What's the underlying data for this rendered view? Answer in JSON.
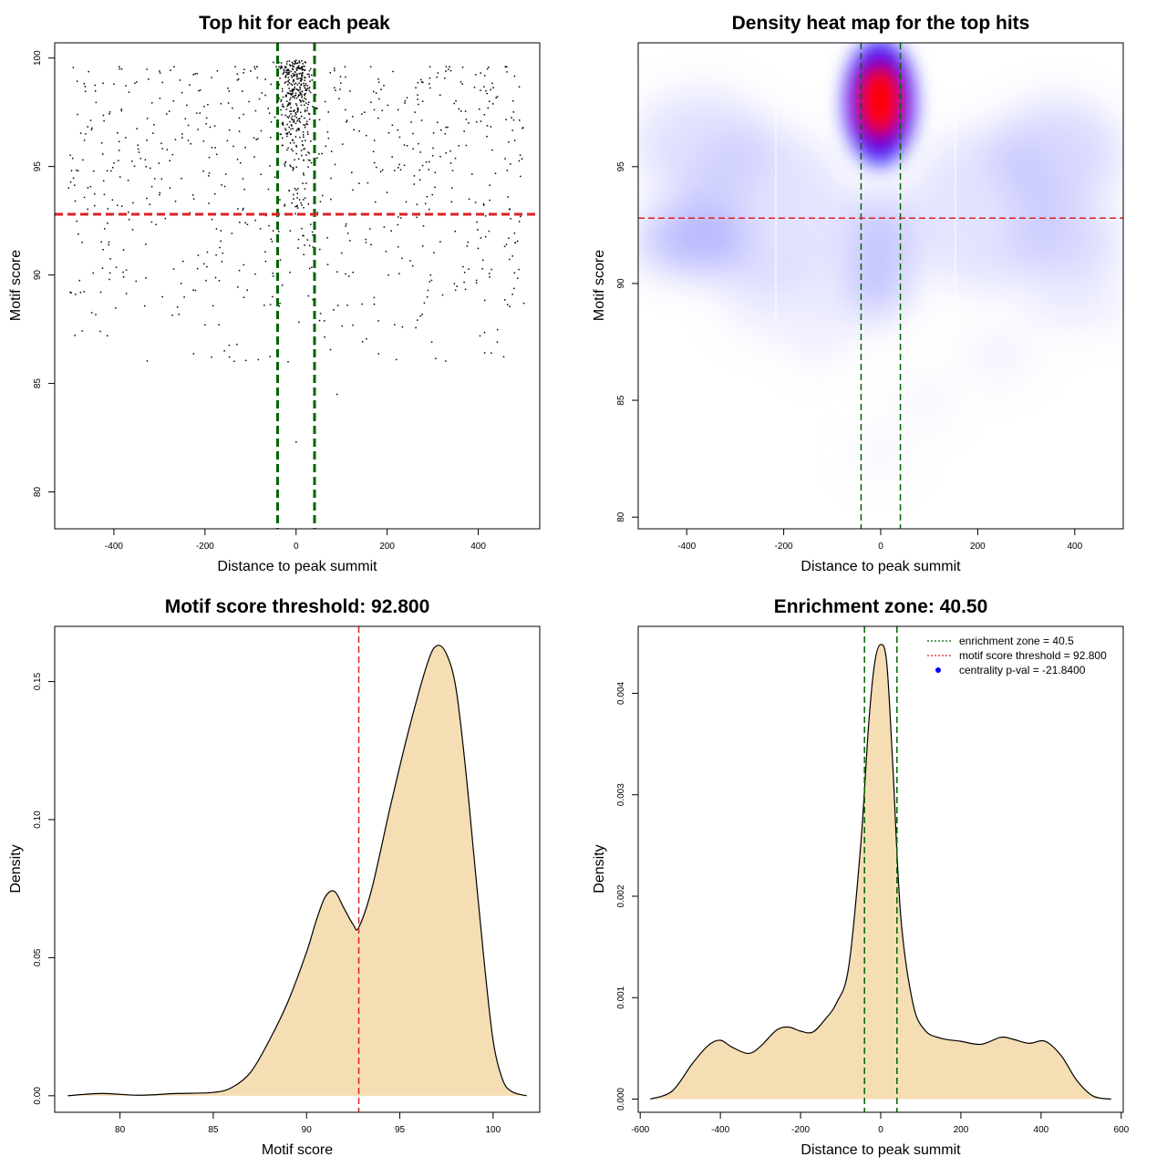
{
  "chart_data": [
    {
      "type": "scatter",
      "title": "Top hit for each peak",
      "xlabel": "Distance to peak summit",
      "ylabel": "Motif score",
      "xlim": [
        -530,
        535
      ],
      "ylim": [
        78.3,
        100.7
      ],
      "xticks": [
        -400,
        -200,
        0,
        200,
        400
      ],
      "yticks": [
        80,
        85,
        90,
        95,
        100
      ],
      "vlines": [
        -40.5,
        40.5
      ],
      "hline": 92.8,
      "colors": {
        "points": "#000000",
        "vline": "#006400",
        "hline": "#dd2222"
      },
      "point_note": "approx. 1100 top hits; dense cluster near distance 0 above score 95",
      "points_sample": [
        [
          -480,
          97.4
        ],
        [
          -470,
          91.5
        ],
        [
          -430,
          87.4
        ],
        [
          -400,
          98.8
        ],
        [
          -350,
          98.9
        ],
        [
          -300,
          99.4
        ],
        [
          -250,
          96.5
        ],
        [
          -200,
          87.7
        ],
        [
          -130,
          86.8
        ],
        [
          -100,
          99.4
        ],
        [
          -50,
          99.8
        ],
        [
          0,
          99.9
        ],
        [
          10,
          97.5
        ],
        [
          20,
          96.2
        ],
        [
          -10,
          95.8
        ],
        [
          30,
          90.3
        ],
        [
          0,
          82.3
        ],
        [
          90,
          84.5
        ],
        [
          150,
          97.5
        ],
        [
          220,
          86.1
        ],
        [
          300,
          95.5
        ],
        [
          350,
          89.3
        ],
        [
          420,
          99.5
        ],
        [
          480,
          96.2
        ],
        [
          500,
          88.7
        ]
      ]
    },
    {
      "type": "heatmap",
      "title": "Density heat map for the top hits",
      "xlabel": "Distance to peak summit",
      "ylabel": "Motif score",
      "xlim": [
        -500,
        500
      ],
      "ylim": [
        79.5,
        100.3
      ],
      "xticks": [
        -400,
        -200,
        0,
        200,
        400
      ],
      "yticks": [
        80,
        85,
        90,
        95
      ],
      "vlines": [
        -40.5,
        40.5
      ],
      "hline": 92.8,
      "colors": {
        "low": "#ffffff",
        "mid": "#0000ff",
        "high": "#ff0000",
        "vline": "#006400",
        "hline": "#dd2222"
      },
      "peak": {
        "x": 0,
        "y": 97.5
      }
    },
    {
      "type": "area",
      "title": "Motif score threshold: 92.800",
      "xlabel": "Motif score",
      "ylabel": "Density",
      "xlim": [
        76.5,
        102.5
      ],
      "ylim": [
        -0.006,
        0.17
      ],
      "xticks": [
        80,
        85,
        90,
        95,
        100
      ],
      "yticks": [
        "0.00",
        "0.05",
        "0.10",
        "0.15"
      ],
      "vline": 92.8,
      "colors": {
        "fill": "#f5deb3",
        "line": "#000000",
        "vline": "#dd2222"
      },
      "x": [
        77.2,
        79,
        81,
        83,
        85,
        86,
        87,
        88,
        89,
        90,
        90.5,
        91,
        91.5,
        92,
        92.5,
        92.8,
        93.5,
        94.5,
        95.5,
        96.5,
        97,
        97.5,
        98,
        98.5,
        99,
        99.5,
        100,
        100.5,
        101,
        101.8
      ],
      "y": [
        0.0,
        0.0008,
        0.0002,
        0.0008,
        0.0012,
        0.003,
        0.0085,
        0.02,
        0.034,
        0.052,
        0.063,
        0.072,
        0.074,
        0.068,
        0.062,
        0.061,
        0.075,
        0.105,
        0.133,
        0.157,
        0.163,
        0.16,
        0.148,
        0.12,
        0.085,
        0.05,
        0.02,
        0.006,
        0.0015,
        0.0
      ]
    },
    {
      "type": "area",
      "title": "Enrichment zone: 40.50",
      "xlabel": "Distance to peak summit",
      "ylabel": "Density",
      "xlim": [
        -605,
        605
      ],
      "ylim": [
        -0.00013,
        0.00466
      ],
      "xticks": [
        -600,
        -400,
        -200,
        0,
        200,
        400,
        600
      ],
      "yticks": [
        "0.000",
        "0.001",
        "0.002",
        "0.003",
        "0.004"
      ],
      "vlines": [
        -40.5,
        40.5
      ],
      "colors": {
        "fill": "#f5deb3",
        "line": "#000000",
        "vline": "#006400"
      },
      "x": [
        -575,
        -520,
        -470,
        -430,
        -400,
        -370,
        -330,
        -300,
        -260,
        -230,
        -200,
        -170,
        -140,
        -110,
        -80,
        -50,
        -30,
        -15,
        0,
        15,
        30,
        50,
        80,
        110,
        150,
        200,
        250,
        300,
        330,
        370,
        410,
        450,
        490,
        530,
        575
      ],
      "y": [
        0.0,
        8e-05,
        0.00035,
        0.00053,
        0.00058,
        0.00051,
        0.00045,
        0.00052,
        0.00068,
        0.00071,
        0.00067,
        0.00066,
        0.00078,
        0.00095,
        0.0013,
        0.0025,
        0.0037,
        0.0043,
        0.00448,
        0.0043,
        0.0033,
        0.0018,
        0.00095,
        0.00068,
        0.0006,
        0.00057,
        0.00054,
        0.00061,
        0.00059,
        0.00055,
        0.00057,
        0.00043,
        0.00018,
        3e-05,
        0.0
      ],
      "legend": [
        {
          "label": "enrichment zone = 40.5",
          "style": "dotted",
          "color": "#006400"
        },
        {
          "label": "motif score threshold = 92.800",
          "style": "dotted",
          "color": "#dd2222"
        },
        {
          "label": "centrality p-val = -21.8400",
          "style": "point",
          "color": "#0000ff"
        }
      ]
    }
  ]
}
